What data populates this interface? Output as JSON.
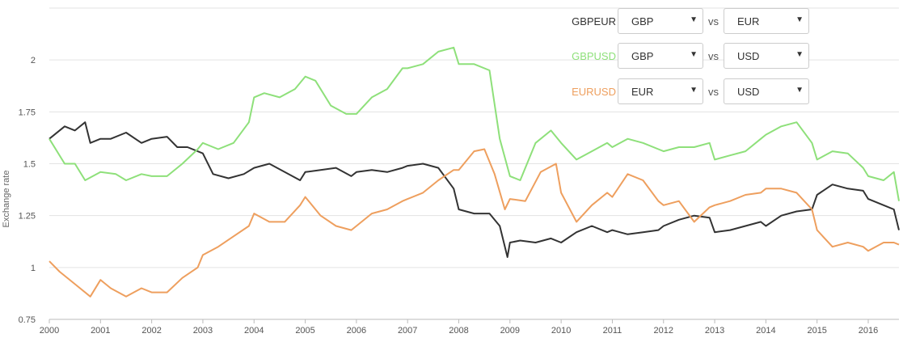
{
  "controls": [
    {
      "pair": "GBPEUR",
      "color": "#333333",
      "base": "GBP",
      "vs": "vs",
      "quote": "EUR"
    },
    {
      "pair": "GBPUSD",
      "color": "#8ee07a",
      "base": "GBP",
      "vs": "vs",
      "quote": "USD"
    },
    {
      "pair": "EURUSD",
      "color": "#ee9f5e",
      "base": "EUR",
      "vs": "vs",
      "quote": "USD"
    }
  ],
  "chart_data": {
    "type": "line",
    "xlabel": "",
    "ylabel": "Exchange rate",
    "xlim": [
      2000,
      2016.6
    ],
    "ylim": [
      0.75,
      2.25
    ],
    "x_ticks": [
      "2000",
      "2001",
      "2002",
      "2003",
      "2004",
      "2005",
      "2006",
      "2007",
      "2008",
      "2009",
      "2010",
      "2011",
      "2012",
      "2013",
      "2014",
      "2015",
      "2016"
    ],
    "y_ticks": [
      "0.75",
      "1",
      "1.25",
      "1.5",
      "1.75",
      "2"
    ],
    "y_tick_values": [
      0.75,
      1,
      1.25,
      1.5,
      1.75,
      2
    ],
    "grid": "horizontal",
    "series": [
      {
        "name": "GBPEUR",
        "color": "#333333",
        "x": [
          2000,
          2000.3,
          2000.5,
          2000.7,
          2000.8,
          2001,
          2001.2,
          2001.5,
          2001.8,
          2002,
          2002.3,
          2002.5,
          2002.7,
          2003,
          2003.2,
          2003.5,
          2003.8,
          2004,
          2004.3,
          2004.6,
          2004.9,
          2005,
          2005.3,
          2005.6,
          2005.9,
          2006,
          2006.3,
          2006.6,
          2006.9,
          2007,
          2007.3,
          2007.6,
          2007.9,
          2008,
          2008.3,
          2008.6,
          2008.8,
          2008.95,
          2009,
          2009.2,
          2009.5,
          2009.8,
          2010,
          2010.3,
          2010.6,
          2010.9,
          2011,
          2011.3,
          2011.6,
          2011.9,
          2012,
          2012.3,
          2012.6,
          2012.9,
          2013,
          2013.3,
          2013.6,
          2013.9,
          2014,
          2014.3,
          2014.6,
          2014.9,
          2015,
          2015.3,
          2015.6,
          2015.9,
          2016,
          2016.3,
          2016.5,
          2016.6
        ],
        "y": [
          1.62,
          1.68,
          1.66,
          1.7,
          1.6,
          1.62,
          1.62,
          1.65,
          1.6,
          1.62,
          1.63,
          1.58,
          1.58,
          1.55,
          1.45,
          1.43,
          1.45,
          1.48,
          1.5,
          1.46,
          1.42,
          1.46,
          1.47,
          1.48,
          1.44,
          1.46,
          1.47,
          1.46,
          1.48,
          1.49,
          1.5,
          1.48,
          1.38,
          1.28,
          1.26,
          1.26,
          1.2,
          1.05,
          1.12,
          1.13,
          1.12,
          1.14,
          1.12,
          1.17,
          1.2,
          1.17,
          1.18,
          1.16,
          1.17,
          1.18,
          1.2,
          1.23,
          1.25,
          1.24,
          1.17,
          1.18,
          1.2,
          1.22,
          1.2,
          1.25,
          1.27,
          1.28,
          1.35,
          1.4,
          1.38,
          1.37,
          1.33,
          1.3,
          1.28,
          1.18
        ]
      },
      {
        "name": "GBPUSD",
        "color": "#8ee07a",
        "x": [
          2000,
          2000.3,
          2000.5,
          2000.7,
          2001,
          2001.3,
          2001.5,
          2001.8,
          2002,
          2002.3,
          2002.6,
          2002.9,
          2003,
          2003.3,
          2003.6,
          2003.9,
          2004,
          2004.2,
          2004.5,
          2004.8,
          2005,
          2005.2,
          2005.5,
          2005.8,
          2006,
          2006.3,
          2006.6,
          2006.9,
          2007,
          2007.3,
          2007.6,
          2007.9,
          2008,
          2008.3,
          2008.6,
          2008.8,
          2009,
          2009.2,
          2009.5,
          2009.8,
          2010,
          2010.3,
          2010.6,
          2010.9,
          2011,
          2011.3,
          2011.6,
          2011.9,
          2012,
          2012.3,
          2012.6,
          2012.9,
          2013,
          2013.3,
          2013.6,
          2013.9,
          2014,
          2014.3,
          2014.6,
          2014.9,
          2015,
          2015.3,
          2015.6,
          2015.9,
          2016,
          2016.3,
          2016.5,
          2016.6
        ],
        "y": [
          1.62,
          1.5,
          1.5,
          1.42,
          1.46,
          1.45,
          1.42,
          1.45,
          1.44,
          1.44,
          1.5,
          1.57,
          1.6,
          1.57,
          1.6,
          1.7,
          1.82,
          1.84,
          1.82,
          1.86,
          1.92,
          1.9,
          1.78,
          1.74,
          1.74,
          1.82,
          1.86,
          1.96,
          1.96,
          1.98,
          2.04,
          2.06,
          1.98,
          1.98,
          1.95,
          1.62,
          1.44,
          1.42,
          1.6,
          1.66,
          1.6,
          1.52,
          1.56,
          1.6,
          1.58,
          1.62,
          1.6,
          1.57,
          1.56,
          1.58,
          1.58,
          1.6,
          1.52,
          1.54,
          1.56,
          1.62,
          1.64,
          1.68,
          1.7,
          1.6,
          1.52,
          1.56,
          1.55,
          1.48,
          1.44,
          1.42,
          1.46,
          1.32
        ]
      },
      {
        "name": "EURUSD",
        "color": "#ee9f5e",
        "x": [
          2000,
          2000.2,
          2000.5,
          2000.8,
          2001,
          2001.2,
          2001.5,
          2001.8,
          2002,
          2002.3,
          2002.6,
          2002.9,
          2003,
          2003.3,
          2003.6,
          2003.9,
          2004,
          2004.3,
          2004.6,
          2004.9,
          2005,
          2005.3,
          2005.6,
          2005.9,
          2006,
          2006.3,
          2006.6,
          2006.9,
          2007,
          2007.3,
          2007.6,
          2007.9,
          2008,
          2008.3,
          2008.5,
          2008.7,
          2008.9,
          2009,
          2009.3,
          2009.6,
          2009.9,
          2010,
          2010.3,
          2010.6,
          2010.9,
          2011,
          2011.3,
          2011.6,
          2011.9,
          2012,
          2012.3,
          2012.6,
          2012.9,
          2013,
          2013.3,
          2013.6,
          2013.9,
          2014,
          2014.3,
          2014.6,
          2014.9,
          2015,
          2015.3,
          2015.6,
          2015.9,
          2016,
          2016.3,
          2016.5,
          2016.6
        ],
        "y": [
          1.03,
          0.98,
          0.92,
          0.86,
          0.94,
          0.9,
          0.86,
          0.9,
          0.88,
          0.88,
          0.95,
          1.0,
          1.06,
          1.1,
          1.15,
          1.2,
          1.26,
          1.22,
          1.22,
          1.3,
          1.34,
          1.25,
          1.2,
          1.18,
          1.2,
          1.26,
          1.28,
          1.32,
          1.33,
          1.36,
          1.42,
          1.47,
          1.47,
          1.56,
          1.57,
          1.45,
          1.28,
          1.33,
          1.32,
          1.46,
          1.5,
          1.36,
          1.22,
          1.3,
          1.36,
          1.34,
          1.45,
          1.42,
          1.32,
          1.3,
          1.32,
          1.22,
          1.29,
          1.3,
          1.32,
          1.35,
          1.36,
          1.38,
          1.38,
          1.36,
          1.28,
          1.18,
          1.1,
          1.12,
          1.1,
          1.08,
          1.12,
          1.12,
          1.11
        ]
      }
    ]
  }
}
